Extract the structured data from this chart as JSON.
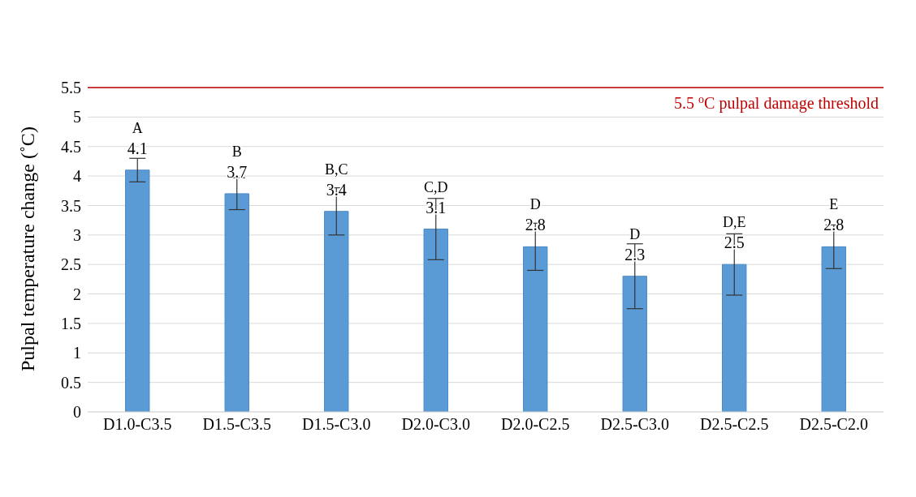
{
  "chart_data": {
    "type": "bar",
    "ylabel": "Pulpal temperature change (˚C)",
    "categories": [
      "D1.0-C3.5",
      "D1.5-C3.5",
      "D1.5-C3.0",
      "D2.0-C3.0",
      "D2.0-C2.5",
      "D2.5-C3.0",
      "D2.5-C2.5",
      "D2.5-C2.0"
    ],
    "values": [
      4.1,
      3.7,
      3.4,
      3.1,
      2.8,
      2.3,
      2.5,
      2.8
    ],
    "errors": [
      0.2,
      0.27,
      0.4,
      0.52,
      0.4,
      0.55,
      0.52,
      0.37
    ],
    "color": "#5b9bd5",
    "data_labels": true,
    "ylim": [
      0,
      5.5
    ],
    "yticks": [
      0,
      0.5,
      1,
      1.5,
      2,
      2.5,
      3,
      3.5,
      4,
      4.5,
      5,
      5.5
    ],
    "grid": "y",
    "ref_lines": [
      {
        "axis": "y",
        "value": 5.5,
        "label": "5.5 $^{o}$C pulpal damage threshold",
        "color": "#c00000"
      }
    ],
    "annotations": [
      {
        "text": "A",
        "x": "D1.0-C3.5",
        "y": 4.1
      },
      {
        "text": "B",
        "x": "D1.5-C3.5",
        "y": 3.7
      },
      {
        "text": "B,C",
        "x": "D1.5-C3.0",
        "y": 3.4
      },
      {
        "text": "C,D",
        "x": "D2.0-C3.0",
        "y": 3.1
      },
      {
        "text": "D",
        "x": "D2.0-C2.5",
        "y": 2.8
      },
      {
        "text": "D",
        "x": "D2.5-C3.0",
        "y": 2.3
      },
      {
        "text": "D,E",
        "x": "D2.5-C2.5",
        "y": 2.5
      },
      {
        "text": "E",
        "x": "D2.5-C2.0",
        "y": 2.8
      }
    ]
  }
}
